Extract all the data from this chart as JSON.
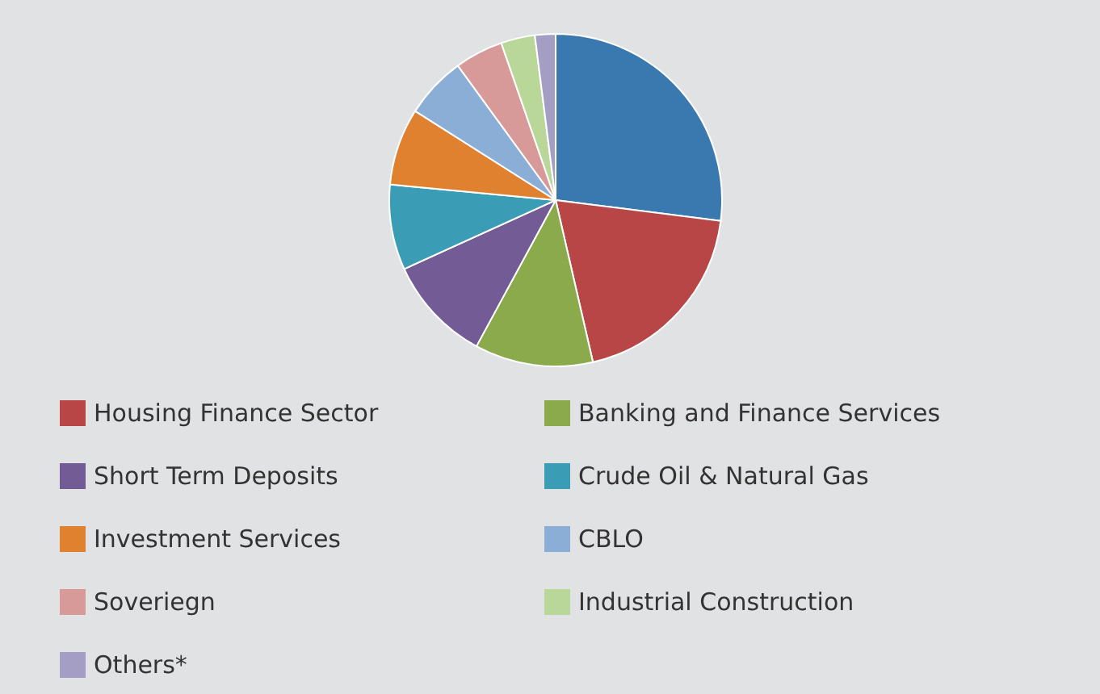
{
  "chart_data": {
    "type": "pie",
    "categories": [
      null,
      "Housing Finance Sector",
      "Banking and Finance Services",
      "Short Term Deposits",
      "Crude Oil & Natural Gas",
      "Investment Services",
      "CBLO",
      "Soveriegn",
      "Industrial Construction",
      "Others*"
    ],
    "values": [
      27,
      19.4,
      11.5,
      10.3,
      8.3,
      7.5,
      6,
      4.7,
      3.3,
      2
    ],
    "colors": [
      "#3a78b0",
      "#b84646",
      "#8aaa4c",
      "#735b96",
      "#3a9db5",
      "#e0812f",
      "#8aaed6",
      "#d89a98",
      "#bad79a",
      "#a49dc4"
    ],
    "legend": "bottom"
  }
}
